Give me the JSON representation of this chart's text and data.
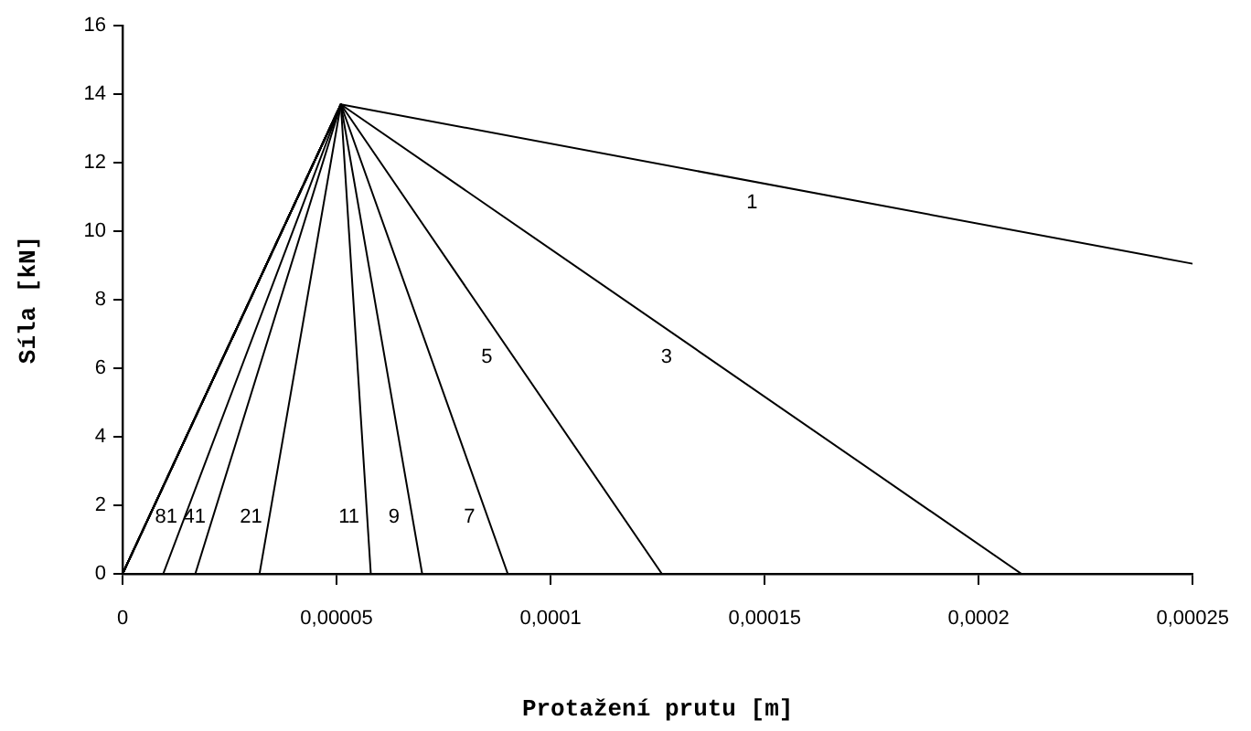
{
  "chart_data": {
    "type": "line",
    "xlabel": "Protažení prutu [m]",
    "ylabel": "Síla [kN]",
    "xlim": [
      0,
      0.00025
    ],
    "ylim": [
      0,
      16
    ],
    "xticks": [
      0,
      {
        "value": 5e-05,
        "label": "0,00005"
      },
      {
        "value": 0.0001,
        "label": "0,0001"
      },
      {
        "value": 0.00015,
        "label": "0,00015"
      },
      {
        "value": 0.0002,
        "label": "0,0002"
      },
      {
        "value": 0.00025,
        "label": "0,00025"
      }
    ],
    "yticks": [
      0,
      2,
      4,
      6,
      8,
      10,
      12,
      14,
      16
    ],
    "grid": false,
    "legend": false,
    "series": [
      {
        "name": "1",
        "color": "#000000",
        "x": [
          0,
          5.1e-05,
          0.00025
        ],
        "values": [
          0,
          13.7,
          9.05
        ]
      },
      {
        "name": "3",
        "color": "#000000",
        "x": [
          0,
          5.1e-05,
          0.00021
        ],
        "values": [
          0,
          13.7,
          0
        ]
      },
      {
        "name": "5",
        "color": "#000000",
        "x": [
          0,
          5.1e-05,
          0.000126
        ],
        "values": [
          0,
          13.7,
          0
        ]
      },
      {
        "name": "7",
        "color": "#000000",
        "x": [
          0,
          5.1e-05,
          9e-05
        ],
        "values": [
          0,
          13.7,
          0
        ]
      },
      {
        "name": "9",
        "color": "#000000",
        "x": [
          0,
          5.1e-05,
          7e-05
        ],
        "values": [
          0,
          13.7,
          0
        ]
      },
      {
        "name": "11",
        "color": "#000000",
        "x": [
          0,
          5.1e-05,
          5.8e-05
        ],
        "values": [
          0,
          13.7,
          0
        ]
      },
      {
        "name": "21",
        "color": "#000000",
        "x": [
          0,
          5.1e-05,
          3.2e-05
        ],
        "values": [
          0,
          13.7,
          0
        ]
      },
      {
        "name": "41",
        "color": "#000000",
        "x": [
          0,
          5.1e-05,
          1.7e-05
        ],
        "values": [
          0,
          13.7,
          0
        ]
      },
      {
        "name": "81",
        "color": "#000000",
        "x": [
          0,
          5.1e-05,
          9.5e-06
        ],
        "values": [
          0,
          13.7,
          0
        ]
      }
    ]
  }
}
